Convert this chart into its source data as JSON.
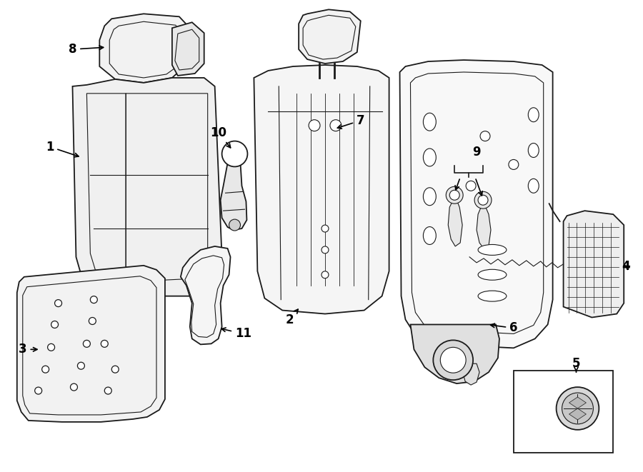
{
  "background_color": "#ffffff",
  "line_color": "#1a1a1a",
  "fig_width": 9.0,
  "fig_height": 6.61,
  "lw_main": 1.3,
  "lw_inner": 0.8,
  "label_fontsize": 12
}
